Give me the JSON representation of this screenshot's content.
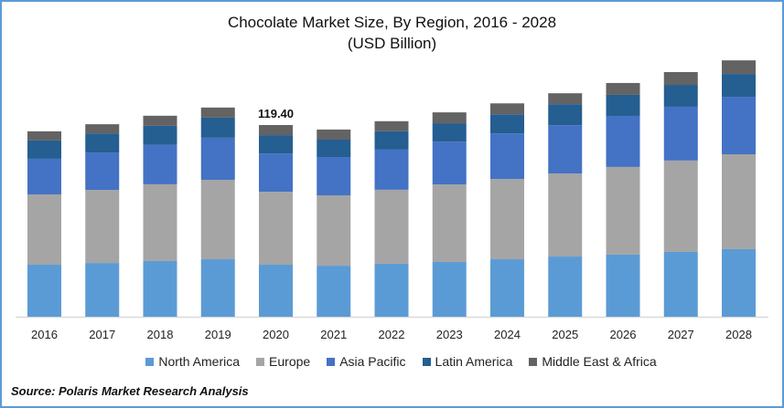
{
  "chart_data": {
    "type": "bar",
    "stacked": true,
    "title": "Chocolate Market Size, By Region, 2016 - 2028",
    "subtitle": "(USD Billion)",
    "xlabel": "",
    "ylabel": "",
    "ylim": [
      0,
      165
    ],
    "grid": false,
    "legend_position": "bottom",
    "categories": [
      "2016",
      "2017",
      "2018",
      "2019",
      "2020",
      "2021",
      "2022",
      "2023",
      "2024",
      "2025",
      "2026",
      "2027",
      "2028"
    ],
    "series": [
      {
        "name": "North America",
        "color": "#5b9bd5",
        "values": [
          32.4,
          33.5,
          34.7,
          35.8,
          32.4,
          31.8,
          33.0,
          34.1,
          35.8,
          37.5,
          38.7,
          40.4,
          42.1
        ]
      },
      {
        "name": "Europe",
        "color": "#a5a5a5",
        "values": [
          43.8,
          45.5,
          47.8,
          49.5,
          45.5,
          43.8,
          46.1,
          48.3,
          50.0,
          51.7,
          54.6,
          56.9,
          59.1
        ]
      },
      {
        "name": "Asia Pacific",
        "color": "#4472c4",
        "values": [
          22.2,
          23.3,
          24.5,
          26.2,
          23.8,
          23.9,
          25.0,
          26.7,
          28.4,
          30.1,
          31.8,
          33.5,
          35.8
        ]
      },
      {
        "name": "Latin America",
        "color": "#255e91",
        "values": [
          11.4,
          11.9,
          11.9,
          12.5,
          11.4,
          10.8,
          11.4,
          11.4,
          11.9,
          13.1,
          13.1,
          13.6,
          14.2
        ]
      },
      {
        "name": "Middle East & Africa",
        "color": "#636363",
        "values": [
          5.7,
          5.7,
          6.3,
          6.3,
          6.3,
          6.3,
          6.3,
          6.8,
          6.8,
          6.8,
          7.4,
          8.0,
          8.5
        ]
      }
    ],
    "annotations": [
      {
        "category": "2020",
        "text": "119.40"
      }
    ]
  },
  "source": "Source: Polaris  Market Research Analysis"
}
